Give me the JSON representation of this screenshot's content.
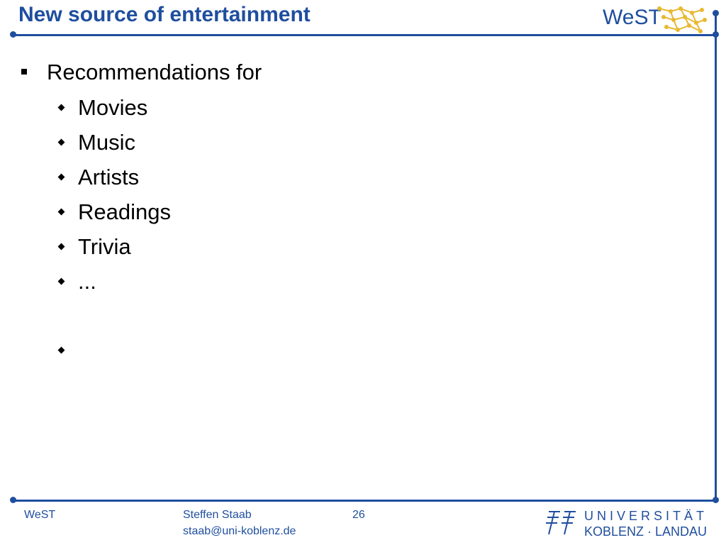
{
  "slide": {
    "title": "New source of entertainment",
    "bullet_l1": "Recommendations for",
    "bullets_l2": [
      "Movies",
      "Music",
      "Artists",
      "Readings",
      "Trivia",
      "...",
      ""
    ]
  },
  "header_logo": {
    "text": "WeST"
  },
  "footer": {
    "left": "WeST",
    "author": "Steffen Staab",
    "email": "staab@uni-koblenz.de",
    "page": "26",
    "university_line1": "UNIVERSITÄT",
    "university_line2": "KOBLENZ · LANDAU"
  },
  "colors": {
    "accent": "#1f4e9e",
    "logo_gold": "#e8b830"
  }
}
